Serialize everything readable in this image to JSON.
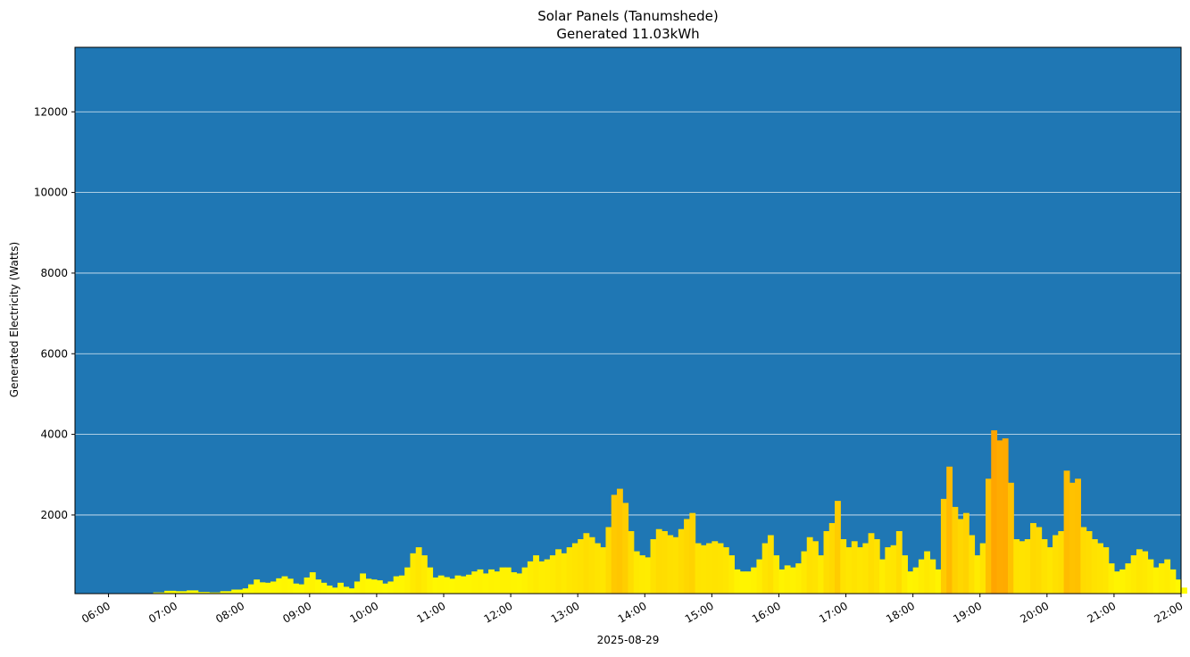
{
  "chart_data": {
    "type": "bar",
    "title": "Solar Panels (Tanumshede)",
    "subtitle": "Generated 11.03kWh",
    "xlabel": "2025-08-29",
    "ylabel": "Generated Electricity (Watts)",
    "x_range": [
      "05:30",
      "22:00"
    ],
    "ylim": [
      50,
      13600
    ],
    "y_ticks": [
      2000,
      4000,
      6000,
      8000,
      10000,
      12000
    ],
    "x_ticks": [
      "06:00",
      "07:00",
      "08:00",
      "09:00",
      "10:00",
      "11:00",
      "12:00",
      "13:00",
      "14:00",
      "15:00",
      "16:00",
      "17:00",
      "18:00",
      "19:00",
      "20:00",
      "21:00",
      "22:00"
    ],
    "grid": "horizontal",
    "background_color": "#1f77b4",
    "grid_color": "#ffffff",
    "bar_colormap": [
      "#ffff00",
      "#ffa500"
    ],
    "series": [
      {
        "points": [
          [
            "06:30",
            50
          ],
          [
            "06:40",
            80
          ],
          [
            "06:50",
            120
          ],
          [
            "07:00",
            110
          ],
          [
            "07:10",
            130
          ],
          [
            "07:20",
            90
          ],
          [
            "07:30",
            80
          ],
          [
            "07:40",
            110
          ],
          [
            "07:50",
            150
          ],
          [
            "08:00",
            180
          ],
          [
            "08:05",
            280
          ],
          [
            "08:10",
            400
          ],
          [
            "08:15",
            330
          ],
          [
            "08:20",
            320
          ],
          [
            "08:25",
            350
          ],
          [
            "08:30",
            430
          ],
          [
            "08:35",
            480
          ],
          [
            "08:40",
            420
          ],
          [
            "08:45",
            300
          ],
          [
            "08:50",
            280
          ],
          [
            "08:55",
            450
          ],
          [
            "09:00",
            580
          ],
          [
            "09:05",
            400
          ],
          [
            "09:10",
            320
          ],
          [
            "09:15",
            250
          ],
          [
            "09:20",
            200
          ],
          [
            "09:25",
            320
          ],
          [
            "09:30",
            220
          ],
          [
            "09:35",
            180
          ],
          [
            "09:40",
            350
          ],
          [
            "09:45",
            550
          ],
          [
            "09:50",
            420
          ],
          [
            "09:55",
            400
          ],
          [
            "10:00",
            380
          ],
          [
            "10:05",
            300
          ],
          [
            "10:10",
            350
          ],
          [
            "10:15",
            480
          ],
          [
            "10:20",
            500
          ],
          [
            "10:25",
            700
          ],
          [
            "10:30",
            1050
          ],
          [
            "10:35",
            1200
          ],
          [
            "10:40",
            1000
          ],
          [
            "10:45",
            700
          ],
          [
            "10:50",
            450
          ],
          [
            "10:55",
            500
          ],
          [
            "11:00",
            460
          ],
          [
            "11:05",
            420
          ],
          [
            "11:10",
            500
          ],
          [
            "11:15",
            480
          ],
          [
            "11:20",
            520
          ],
          [
            "11:25",
            600
          ],
          [
            "11:30",
            650
          ],
          [
            "11:35",
            550
          ],
          [
            "11:40",
            650
          ],
          [
            "11:45",
            600
          ],
          [
            "11:50",
            700
          ],
          [
            "11:55",
            700
          ],
          [
            "12:00",
            580
          ],
          [
            "12:05",
            550
          ],
          [
            "12:10",
            700
          ],
          [
            "12:15",
            850
          ],
          [
            "12:20",
            1000
          ],
          [
            "12:25",
            850
          ],
          [
            "12:30",
            900
          ],
          [
            "12:35",
            1000
          ],
          [
            "12:40",
            1150
          ],
          [
            "12:45",
            1050
          ],
          [
            "12:50",
            1200
          ],
          [
            "12:55",
            1300
          ],
          [
            "13:00",
            1400
          ],
          [
            "13:05",
            1550
          ],
          [
            "13:10",
            1450
          ],
          [
            "13:15",
            1300
          ],
          [
            "13:20",
            1200
          ],
          [
            "13:25",
            1700
          ],
          [
            "13:30",
            2500
          ],
          [
            "13:35",
            2650
          ],
          [
            "13:40",
            2300
          ],
          [
            "13:45",
            1600
          ],
          [
            "13:50",
            1100
          ],
          [
            "13:55",
            1000
          ],
          [
            "14:00",
            950
          ],
          [
            "14:05",
            1400
          ],
          [
            "14:10",
            1650
          ],
          [
            "14:15",
            1600
          ],
          [
            "14:20",
            1500
          ],
          [
            "14:25",
            1450
          ],
          [
            "14:30",
            1650
          ],
          [
            "14:35",
            1900
          ],
          [
            "14:40",
            2050
          ],
          [
            "14:45",
            1300
          ],
          [
            "14:50",
            1250
          ],
          [
            "14:55",
            1300
          ],
          [
            "15:00",
            1350
          ],
          [
            "15:05",
            1300
          ],
          [
            "15:10",
            1200
          ],
          [
            "15:15",
            1000
          ],
          [
            "15:20",
            650
          ],
          [
            "15:25",
            600
          ],
          [
            "15:30",
            600
          ],
          [
            "15:35",
            700
          ],
          [
            "15:40",
            900
          ],
          [
            "15:45",
            1300
          ],
          [
            "15:50",
            1500
          ],
          [
            "15:55",
            1000
          ],
          [
            "16:00",
            650
          ],
          [
            "16:05",
            750
          ],
          [
            "16:10",
            700
          ],
          [
            "16:15",
            800
          ],
          [
            "16:20",
            1100
          ],
          [
            "16:25",
            1450
          ],
          [
            "16:30",
            1350
          ],
          [
            "16:35",
            1000
          ],
          [
            "16:40",
            1600
          ],
          [
            "16:45",
            1800
          ],
          [
            "16:50",
            2350
          ],
          [
            "16:55",
            1400
          ],
          [
            "17:00",
            1200
          ],
          [
            "17:05",
            1350
          ],
          [
            "17:10",
            1200
          ],
          [
            "17:15",
            1300
          ],
          [
            "17:20",
            1550
          ],
          [
            "17:25",
            1400
          ],
          [
            "17:30",
            900
          ],
          [
            "17:35",
            1200
          ],
          [
            "17:40",
            1250
          ],
          [
            "17:45",
            1600
          ],
          [
            "17:50",
            1000
          ],
          [
            "17:55",
            600
          ],
          [
            "18:00",
            700
          ],
          [
            "18:05",
            900
          ],
          [
            "18:10",
            1100
          ],
          [
            "18:15",
            900
          ],
          [
            "18:20",
            650
          ],
          [
            "18:25",
            2400
          ],
          [
            "18:30",
            3200
          ],
          [
            "18:35",
            2200
          ],
          [
            "18:40",
            1900
          ],
          [
            "18:45",
            2050
          ],
          [
            "18:50",
            1500
          ],
          [
            "18:55",
            1000
          ],
          [
            "19:00",
            1300
          ],
          [
            "19:05",
            2900
          ],
          [
            "19:10",
            4100
          ],
          [
            "19:15",
            3850
          ],
          [
            "19:20",
            3900
          ],
          [
            "19:25",
            2800
          ],
          [
            "19:30",
            1400
          ],
          [
            "19:35",
            1350
          ],
          [
            "19:40",
            1400
          ],
          [
            "19:45",
            1800
          ],
          [
            "19:50",
            1700
          ],
          [
            "19:55",
            1400
          ],
          [
            "20:00",
            1200
          ],
          [
            "20:05",
            1500
          ],
          [
            "20:10",
            1600
          ],
          [
            "20:15",
            3100
          ],
          [
            "20:20",
            2800
          ],
          [
            "20:25",
            2900
          ],
          [
            "20:30",
            1700
          ],
          [
            "20:35",
            1600
          ],
          [
            "20:40",
            1400
          ],
          [
            "20:45",
            1300
          ],
          [
            "20:50",
            1200
          ],
          [
            "20:55",
            800
          ],
          [
            "21:00",
            600
          ],
          [
            "21:05",
            650
          ],
          [
            "21:10",
            800
          ],
          [
            "21:15",
            1000
          ],
          [
            "21:20",
            1150
          ],
          [
            "21:25",
            1100
          ],
          [
            "21:30",
            900
          ],
          [
            "21:35",
            700
          ],
          [
            "21:40",
            800
          ],
          [
            "21:45",
            900
          ],
          [
            "21:50",
            650
          ],
          [
            "21:55",
            400
          ],
          [
            "22:00",
            200
          ]
        ]
      }
    ]
  }
}
